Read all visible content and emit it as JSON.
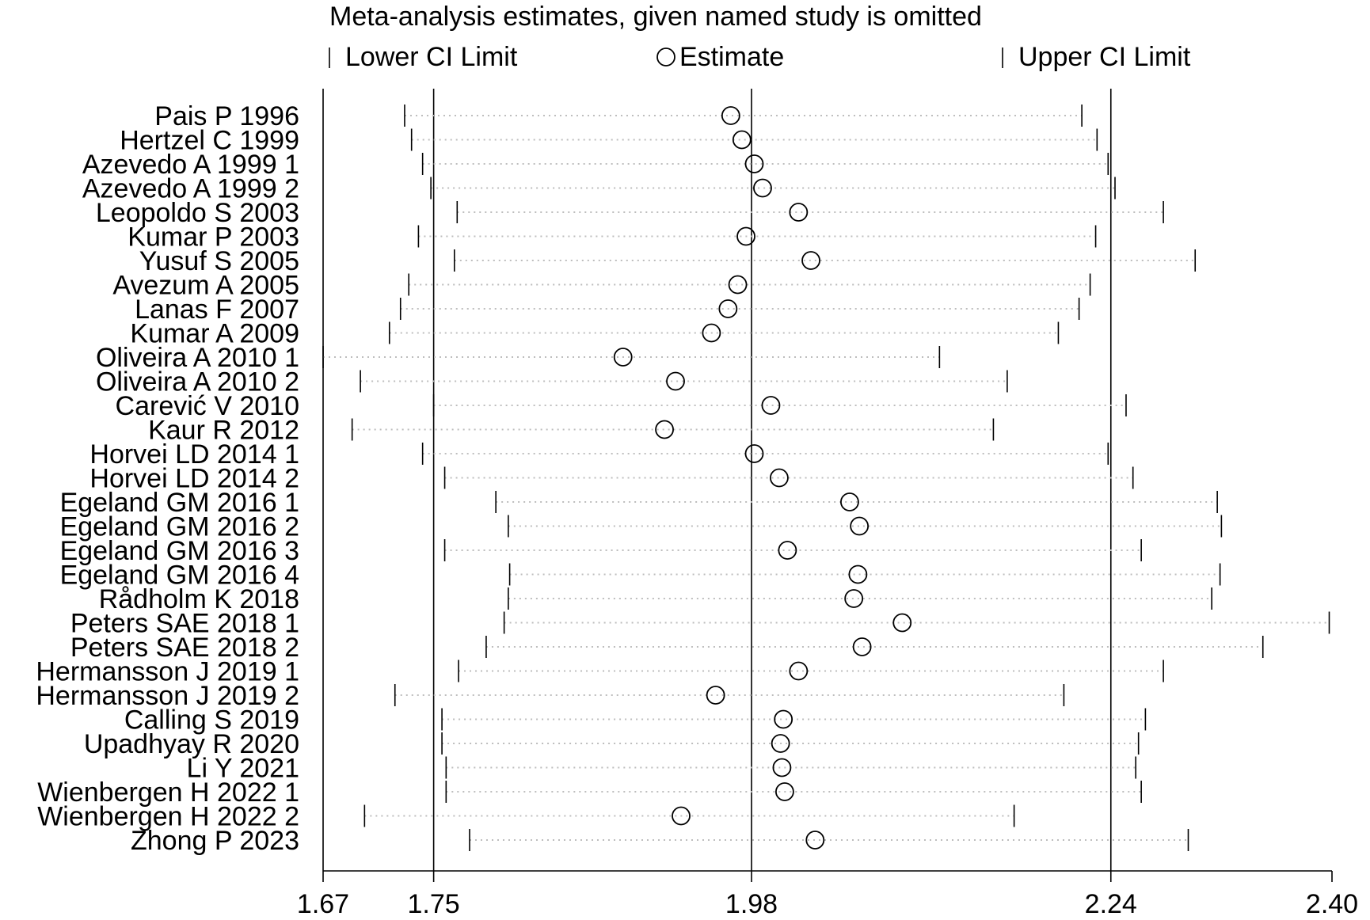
{
  "chart_data": {
    "type": "forest-sensitivity",
    "title": "Meta-analysis estimates, given named study is omitted",
    "legend": {
      "lower": "Lower CI Limit",
      "estimate": "Estimate",
      "upper": "Upper CI Limit"
    },
    "x_ticks": [
      {
        "value": 1.67,
        "label": "1.67"
      },
      {
        "value": 1.75,
        "label": "1.75"
      },
      {
        "value": 1.98,
        "label": "1.98"
      },
      {
        "value": 2.24,
        "label": "2.24"
      },
      {
        "value": 2.4,
        "label": "2.40"
      }
    ],
    "xlim": [
      1.67,
      2.4
    ],
    "reference_lines": [
      1.75,
      1.98,
      2.24
    ],
    "studies": [
      {
        "name": "Pais P 1996",
        "lower": 1.729,
        "estimate": 1.965,
        "upper": 2.219
      },
      {
        "name": "Hertzel C 1999",
        "lower": 1.734,
        "estimate": 1.973,
        "upper": 2.23
      },
      {
        "name": "Azevedo A 1999 1",
        "lower": 1.742,
        "estimate": 1.982,
        "upper": 2.238
      },
      {
        "name": "Azevedo A 1999 2",
        "lower": 1.748,
        "estimate": 1.988,
        "upper": 2.243
      },
      {
        "name": "Leopoldo S 2003",
        "lower": 1.767,
        "estimate": 2.014,
        "upper": 2.278
      },
      {
        "name": "Kumar P 2003",
        "lower": 1.739,
        "estimate": 1.976,
        "upper": 2.229
      },
      {
        "name": "Yusuf S 2005",
        "lower": 1.765,
        "estimate": 2.023,
        "upper": 2.301
      },
      {
        "name": "Avezum A 2005",
        "lower": 1.732,
        "estimate": 1.97,
        "upper": 2.225
      },
      {
        "name": "Lanas F 2007",
        "lower": 1.726,
        "estimate": 1.963,
        "upper": 2.217
      },
      {
        "name": "Kumar A 2009",
        "lower": 1.718,
        "estimate": 1.951,
        "upper": 2.202
      },
      {
        "name": "Oliveira A 2010 1",
        "lower": 1.67,
        "estimate": 1.887,
        "upper": 2.116
      },
      {
        "name": "Oliveira A 2010 2",
        "lower": 1.697,
        "estimate": 1.925,
        "upper": 2.165
      },
      {
        "name": "Carević V 2010",
        "lower": 1.75,
        "estimate": 1.994,
        "upper": 2.251
      },
      {
        "name": "Kaur R 2012",
        "lower": 1.691,
        "estimate": 1.917,
        "upper": 2.155
      },
      {
        "name": "Horvei LD 2014 1",
        "lower": 1.742,
        "estimate": 1.982,
        "upper": 2.238
      },
      {
        "name": "Horvei LD 2014 2",
        "lower": 1.758,
        "estimate": 2.0,
        "upper": 2.256
      },
      {
        "name": "Egeland GM 2016 1",
        "lower": 1.795,
        "estimate": 2.051,
        "upper": 2.317
      },
      {
        "name": "Egeland GM 2016 2",
        "lower": 1.804,
        "estimate": 2.058,
        "upper": 2.32
      },
      {
        "name": "Egeland GM 2016 3",
        "lower": 1.758,
        "estimate": 2.006,
        "upper": 2.262
      },
      {
        "name": "Egeland GM 2016 4",
        "lower": 1.805,
        "estimate": 2.057,
        "upper": 2.319
      },
      {
        "name": "Rådholm K 2018",
        "lower": 1.804,
        "estimate": 2.054,
        "upper": 2.313
      },
      {
        "name": "Peters SAE 2018 1",
        "lower": 1.801,
        "estimate": 2.089,
        "upper": 2.398
      },
      {
        "name": "Peters SAE 2018 2",
        "lower": 1.788,
        "estimate": 2.06,
        "upper": 2.35
      },
      {
        "name": "Hermansson J 2019 1",
        "lower": 1.768,
        "estimate": 2.014,
        "upper": 2.278
      },
      {
        "name": "Hermansson J 2019 2",
        "lower": 1.722,
        "estimate": 1.954,
        "upper": 2.206
      },
      {
        "name": "Calling S 2019",
        "lower": 1.756,
        "estimate": 2.003,
        "upper": 2.265
      },
      {
        "name": "Upadhyay R 2020",
        "lower": 1.756,
        "estimate": 2.001,
        "upper": 2.26
      },
      {
        "name": "Li Y 2021",
        "lower": 1.759,
        "estimate": 2.002,
        "upper": 2.258
      },
      {
        "name": "Wienbergen H 2022 1",
        "lower": 1.759,
        "estimate": 2.004,
        "upper": 2.262
      },
      {
        "name": "Wienbergen H 2022 2",
        "lower": 1.7,
        "estimate": 1.929,
        "upper": 2.17
      },
      {
        "name": "Zhong P 2023",
        "lower": 1.776,
        "estimate": 2.026,
        "upper": 2.296
      }
    ]
  }
}
